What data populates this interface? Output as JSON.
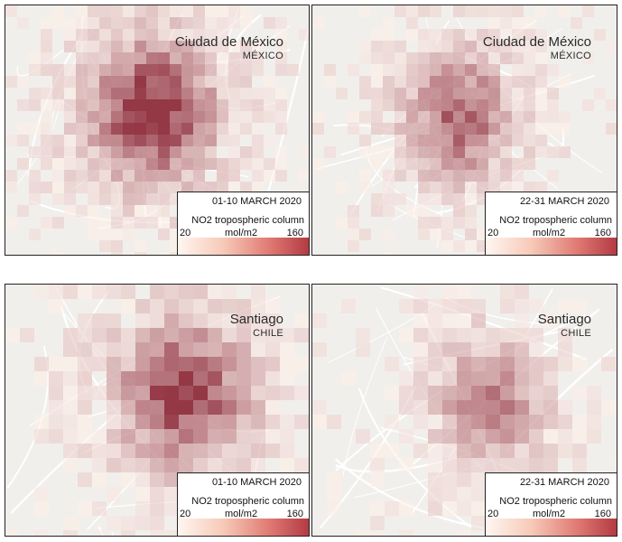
{
  "colors": {
    "low": "#fdeee8",
    "high": "#8e2d3c",
    "base_map": "#f1efec",
    "road": "#ffffff"
  },
  "legend": {
    "variable": "NO2 tropospheric column",
    "unit": "mol/m2",
    "min": "20",
    "max": "160"
  },
  "panels": [
    {
      "id": "mexico-early",
      "city": "Ciudad de México",
      "country": "MÉXICO",
      "period": "01-10 MARCH 2020"
    },
    {
      "id": "mexico-late",
      "city": "Ciudad de México",
      "country": "MÉXICO",
      "period": "22-31 MARCH 2020"
    },
    {
      "id": "santiago-early",
      "city": "Santiago",
      "country": "CHILE",
      "period": "01-10 MARCH 2020"
    },
    {
      "id": "santiago-late",
      "city": "Santiago",
      "country": "CHILE",
      "period": "22-31 MARCH 2020"
    }
  ]
}
